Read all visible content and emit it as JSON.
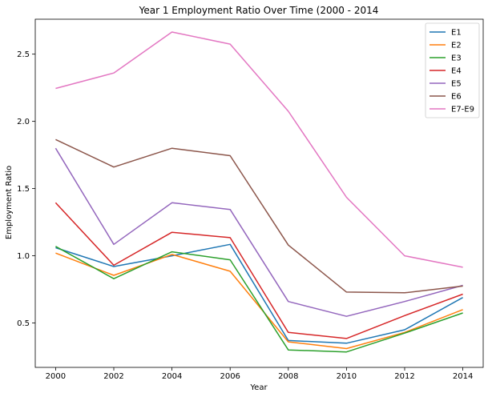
{
  "chart_data": {
    "type": "line",
    "title": "Year 1 Employment Ratio Over Time (2000 - 2014",
    "xlabel": "Year",
    "ylabel": "Employment Ratio",
    "x": [
      2000,
      2002,
      2004,
      2006,
      2008,
      2010,
      2012,
      2014
    ],
    "xlim": [
      1999.3,
      2014.7
    ],
    "ylim": [
      0.17,
      2.76
    ],
    "xticks": [
      2000,
      2002,
      2004,
      2006,
      2008,
      2010,
      2012,
      2014
    ],
    "yticks": [
      0.5,
      1.0,
      1.5,
      2.0,
      2.5
    ],
    "ytick_labels": [
      "0.5",
      "1.0",
      "1.5",
      "2.0",
      "2.5"
    ],
    "grid": false,
    "legend_position": "top-right",
    "series": [
      {
        "name": "E1",
        "color": "#1f77b4",
        "values": [
          1.06,
          0.92,
          1.0,
          1.085,
          0.37,
          0.35,
          0.45,
          0.69
        ]
      },
      {
        "name": "E2",
        "color": "#ff7f0e",
        "values": [
          1.02,
          0.855,
          1.01,
          0.885,
          0.36,
          0.31,
          0.43,
          0.6
        ]
      },
      {
        "name": "E3",
        "color": "#2ca02c",
        "values": [
          1.07,
          0.83,
          1.03,
          0.97,
          0.3,
          0.285,
          0.425,
          0.575
        ]
      },
      {
        "name": "E4",
        "color": "#d62728",
        "values": [
          1.395,
          0.93,
          1.175,
          1.135,
          0.43,
          0.385,
          0.555,
          0.715
        ]
      },
      {
        "name": "E5",
        "color": "#9467bd",
        "values": [
          1.8,
          1.085,
          1.395,
          1.345,
          0.66,
          0.55,
          0.66,
          0.78
        ]
      },
      {
        "name": "E6",
        "color": "#8c564b",
        "values": [
          1.865,
          1.66,
          1.8,
          1.745,
          1.08,
          0.73,
          0.725,
          0.775
        ]
      },
      {
        "name": "E7-E9",
        "color": "#e377c2",
        "values": [
          2.245,
          2.36,
          2.665,
          2.575,
          2.075,
          1.435,
          1.0,
          0.915
        ]
      }
    ]
  }
}
